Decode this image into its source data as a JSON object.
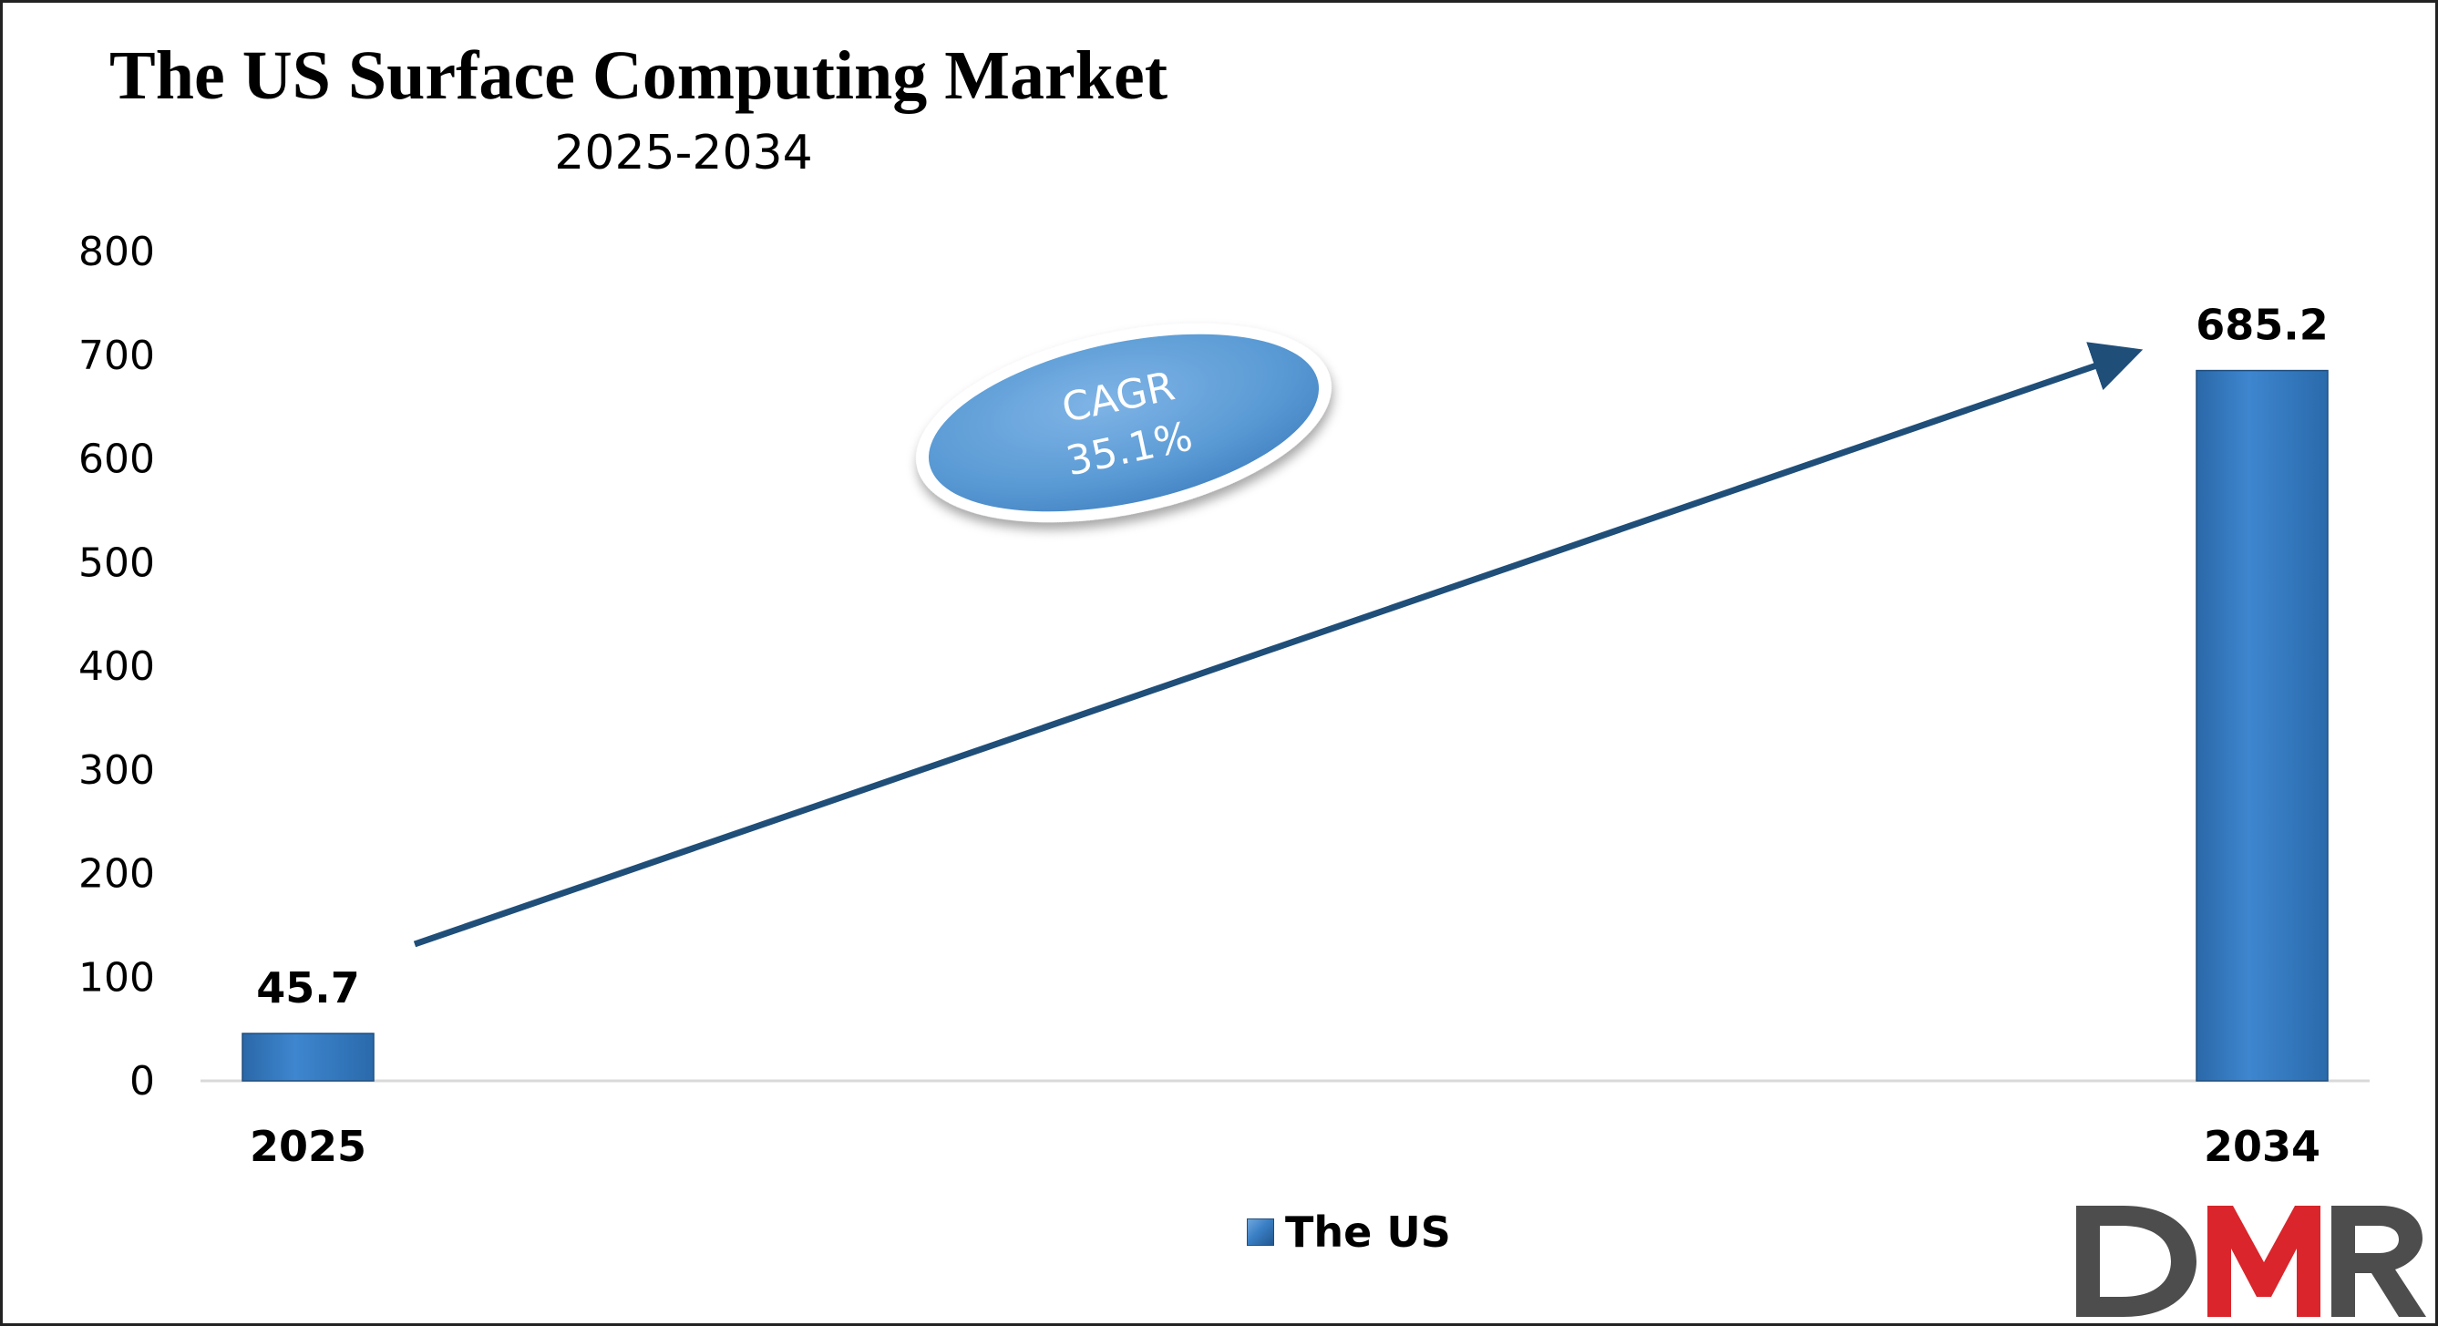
{
  "chart_data": {
    "type": "bar",
    "title": "The US Surface Computing Market",
    "subtitle": "2025-2034",
    "categories": [
      "2025",
      "2034"
    ],
    "series": [
      {
        "name": "The US",
        "values": [
          45.7,
          685.2
        ],
        "color": "#3a7fc5"
      }
    ],
    "data_labels": [
      "45.7",
      "685.2"
    ],
    "yticks": [
      "0",
      "100",
      "200",
      "300",
      "400",
      "500",
      "600",
      "700",
      "800"
    ],
    "ylim": [
      0,
      800
    ],
    "grid": false,
    "legend": "bottom-center",
    "annotation": {
      "line1": "CAGR",
      "line2": "35.1%"
    },
    "colors": {
      "bar": "#3a7fc5",
      "arrow": "#1f4e79",
      "ellipse": "#5b9bd5",
      "axis": "#d9d9d9"
    }
  },
  "logo": {
    "text": "DMR",
    "colors": {
      "dark": "#4d4d4d",
      "red": "#d9252b"
    }
  }
}
